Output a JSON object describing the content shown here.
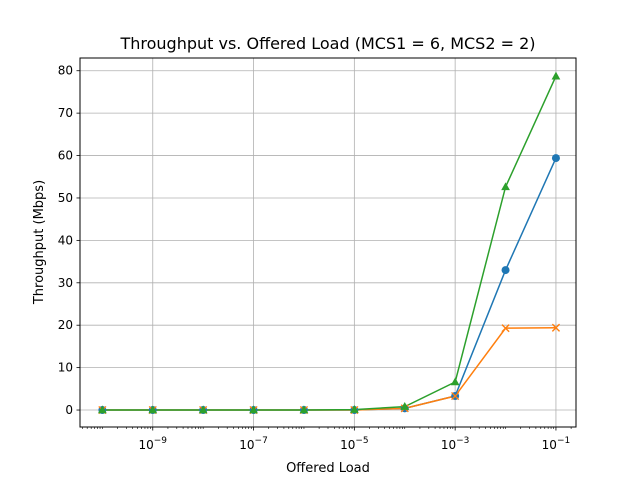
{
  "chart_data": {
    "type": "line",
    "title": "Throughput vs. Offered Load (MCS1 = 6, MCS2 = 2)",
    "xlabel": "Offered Load",
    "ylabel": "Throughput (Mbps)",
    "xscale": "log",
    "xlim": [
      3.6e-11,
      0.25
    ],
    "ylim": [
      -4,
      83
    ],
    "grid": true,
    "x": [
      1e-10,
      1e-09,
      1e-08,
      1e-07,
      1e-06,
      1e-05,
      0.0001,
      0.001,
      0.01,
      0.1
    ],
    "x_ticks": [
      {
        "value": 1e-09,
        "mant": "10",
        "exp": "−9"
      },
      {
        "value": 1e-07,
        "mant": "10",
        "exp": "−7"
      },
      {
        "value": 1e-05,
        "mant": "10",
        "exp": "−5"
      },
      {
        "value": 0.001,
        "mant": "10",
        "exp": "−3"
      },
      {
        "value": 0.1,
        "mant": "10",
        "exp": "−1"
      }
    ],
    "y_ticks": [
      0,
      10,
      20,
      30,
      40,
      50,
      60,
      70,
      80
    ],
    "series": [
      {
        "color": "#1f77b4",
        "marker": "circle",
        "values": [
          0,
          0,
          0,
          0,
          0,
          0,
          0.4,
          3.3,
          33.0,
          59.4
        ]
      },
      {
        "color": "#ff7f0e",
        "marker": "x",
        "values": [
          0,
          0,
          0,
          0,
          0,
          0,
          0.4,
          3.3,
          19.3,
          19.4
        ]
      },
      {
        "color": "#2ca02c",
        "marker": "triangle",
        "values": [
          0,
          0,
          0,
          0,
          0,
          0.1,
          0.8,
          6.6,
          52.6,
          78.7
        ]
      }
    ]
  }
}
